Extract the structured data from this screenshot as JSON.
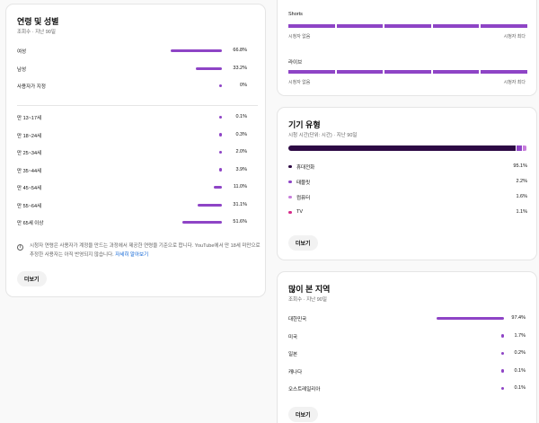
{
  "age_gender": {
    "title": "연령 및 성별",
    "subtitle": "조회수 · 지난 90일",
    "gender": [
      {
        "label": "여성",
        "value": "66.8%",
        "pct": 66.8
      },
      {
        "label": "남성",
        "value": "33.2%",
        "pct": 33.2
      },
      {
        "label": "사용자가 지정",
        "value": "0%",
        "pct": 0
      }
    ],
    "ages": [
      {
        "label": "만 13~17세",
        "value": "0.1%",
        "pct": 0.1
      },
      {
        "label": "만 18~24세",
        "value": "0.3%",
        "pct": 0.3
      },
      {
        "label": "만 25~34세",
        "value": "2.0%",
        "pct": 2.0
      },
      {
        "label": "만 35~44세",
        "value": "3.9%",
        "pct": 3.9
      },
      {
        "label": "만 45~54세",
        "value": "11.0%",
        "pct": 11.0
      },
      {
        "label": "만 55~64세",
        "value": "31.1%",
        "pct": 31.1
      },
      {
        "label": "만 65세 이상",
        "value": "51.6%",
        "pct": 51.6
      }
    ],
    "info_text": "시청자 연령은 사용자가 계정을 만드는 과정에서 제공한 연령을 기준으로 합니다. YouTube에서 만 18세 미만으로 추정한 사용자는 아직 반영되지 않습니다.",
    "info_link": "자세히 알아보기",
    "more_label": "더보기"
  },
  "formats": {
    "shorts_label": "Shorts",
    "live_label": "라이브",
    "axis_min": "시청자 없음",
    "axis_max": "시청자 최다"
  },
  "device": {
    "title": "기기 유형",
    "subtitle": "시청 시간(단위: 시간) · 지난 90일",
    "items": [
      {
        "label": "휴대전화",
        "value": "95.1%",
        "pct": 95.1,
        "color": "#2d0a44"
      },
      {
        "label": "태블릿",
        "value": "2.2%",
        "pct": 2.2,
        "color": "#8e44c6"
      },
      {
        "label": "컴퓨터",
        "value": "1.6%",
        "pct": 1.6,
        "color": "#c77ddb"
      },
      {
        "label": "TV",
        "value": "1.1%",
        "pct": 1.1,
        "color": "#d62a8a"
      }
    ],
    "more_label": "더보기"
  },
  "geography": {
    "title": "많이 본 지역",
    "subtitle": "조회수 · 지난 90일",
    "items": [
      {
        "label": "대한민국",
        "value": "97.4%",
        "pct": 97.4
      },
      {
        "label": "미국",
        "value": "1.7%",
        "pct": 1.7
      },
      {
        "label": "일본",
        "value": "0.2%",
        "pct": 0.2
      },
      {
        "label": "캐나다",
        "value": "0.1%",
        "pct": 0.1
      },
      {
        "label": "오스트레일리아",
        "value": "0.1%",
        "pct": 0.1
      }
    ],
    "more_label": "더보기"
  },
  "colors": {
    "accent": "#8e44c6",
    "phone": "#2d0a44"
  }
}
